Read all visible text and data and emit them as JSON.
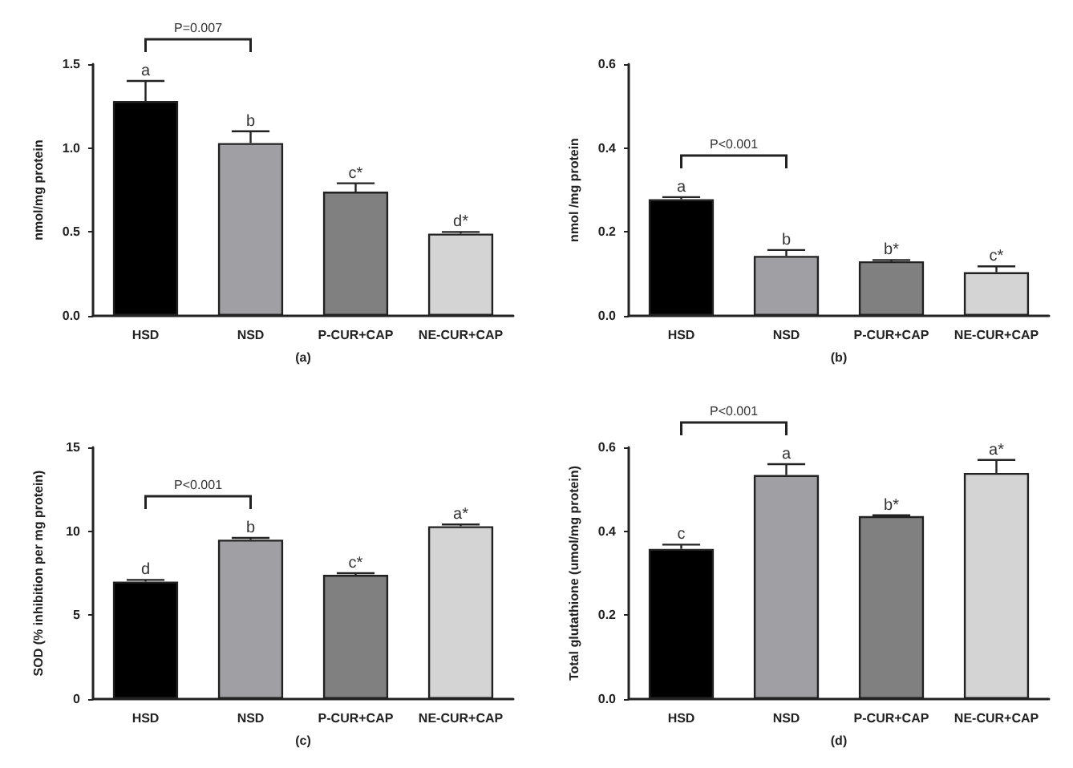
{
  "chart_data": [
    {
      "type": "bar",
      "xlabel": "(a)",
      "ylabel": "nmol/mg protein",
      "categories": [
        "HSD",
        "NSD",
        "P-CUR+CAP",
        "NE-CUR+CAP"
      ],
      "values": [
        1.28,
        1.03,
        0.74,
        0.49
      ],
      "colors": [
        "#000000",
        "#a0a0a4",
        "#808080",
        "#d4d4d4"
      ],
      "errors": [
        [
          1.28,
          1.4
        ],
        [
          1.03,
          1.1
        ],
        [
          0.74,
          0.79
        ],
        [
          0.49,
          0.5
        ]
      ],
      "ylim": [
        0,
        1.5
      ],
      "yticks": [
        {
          "value": 0,
          "label": "0.0"
        },
        {
          "value": 0.5,
          "label": "0.5"
        },
        {
          "value": 1,
          "label": "1.0"
        },
        {
          "value": 1.5,
          "label": "1.5"
        }
      ],
      "grid": false,
      "annotations": [
        {
          "text": "a",
          "x": "HSD",
          "y": 1.4
        },
        {
          "text": "b",
          "x": "NSD",
          "y": 1.1
        },
        {
          "text": "c*",
          "x": "P-CUR+CAP",
          "y": 0.79
        },
        {
          "text": "d*",
          "x": "NE-CUR+CAP",
          "y": 0.5
        },
        "P=0.007"
      ]
    },
    {
      "type": "bar",
      "xlabel": "(b)",
      "ylabel": "nmol /mg protein",
      "categories": [
        "HSD",
        "NSD",
        "P-CUR+CAP",
        "NE-CUR+CAP"
      ],
      "values": [
        0.278,
        0.143,
        0.13,
        0.104
      ],
      "colors": [
        "#000000",
        "#a0a0a4",
        "#808080",
        "#d4d4d4"
      ],
      "errors": [
        [
          0.278,
          0.283
        ],
        [
          0.143,
          0.157
        ],
        [
          0.13,
          0.133
        ],
        [
          0.104,
          0.118
        ]
      ],
      "ylim": [
        0,
        0.6
      ],
      "yticks": [
        {
          "value": 0,
          "label": "0.0"
        },
        {
          "value": 0.2,
          "label": "0.2"
        },
        {
          "value": 0.4,
          "label": "0.4"
        },
        {
          "value": 0.6,
          "label": "0.6"
        }
      ],
      "grid": false,
      "annotations": [
        {
          "text": "a",
          "x": "HSD",
          "y": 0.283
        },
        {
          "text": "b",
          "x": "NSD",
          "y": 0.157
        },
        {
          "text": "b*",
          "x": "P-CUR+CAP",
          "y": 0.133
        },
        {
          "text": "c*",
          "x": "NE-CUR+CAP",
          "y": 0.118
        },
        "P<0.001"
      ]
    },
    {
      "type": "bar",
      "xlabel": "(c)",
      "ylabel": "SOD (% inhibition per mg protein)",
      "categories": [
        "HSD",
        "NSD",
        "P-CUR+CAP",
        "NE-CUR+CAP"
      ],
      "values": [
        7.0,
        9.5,
        7.4,
        10.3
      ],
      "colors": [
        "#000000",
        "#a0a0a4",
        "#808080",
        "#d4d4d4"
      ],
      "errors": [
        [
          7.0,
          7.1
        ],
        [
          9.5,
          9.6
        ],
        [
          7.4,
          7.5
        ],
        [
          10.3,
          10.4
        ]
      ],
      "ylim": [
        0,
        15
      ],
      "yticks": [
        0,
        5,
        10,
        15
      ],
      "grid": false,
      "annotations": [
        {
          "text": "d",
          "x": "HSD",
          "y": 7.1
        },
        {
          "text": "b",
          "x": "NSD",
          "y": 9.6
        },
        {
          "text": "c*",
          "x": "P-CUR+CAP",
          "y": 7.5
        },
        {
          "text": "a*",
          "x": "NE-CUR+CAP",
          "y": 10.4
        },
        "P<0.001"
      ]
    },
    {
      "type": "bar",
      "xlabel": "(d)",
      "ylabel": "Total glutathione (umol/mg protein)",
      "categories": [
        "HSD",
        "NSD",
        "P-CUR+CAP",
        "NE-CUR+CAP"
      ],
      "values": [
        0.358,
        0.534,
        0.436,
        0.539
      ],
      "colors": [
        "#000000",
        "#a0a0a4",
        "#808080",
        "#d4d4d4"
      ],
      "errors": [
        [
          0.358,
          0.368
        ],
        [
          0.534,
          0.56
        ],
        [
          0.436,
          0.438
        ],
        [
          0.539,
          0.57
        ]
      ],
      "ylim": [
        0,
        0.6
      ],
      "yticks": [
        {
          "value": 0,
          "label": "0.0"
        },
        {
          "value": 0.2,
          "label": "0.2"
        },
        {
          "value": 0.4,
          "label": "0.4"
        },
        {
          "value": 0.6,
          "label": "0.6"
        }
      ],
      "grid": false,
      "annotations": [
        {
          "text": "c",
          "x": "HSD",
          "y": 0.368
        },
        {
          "text": "a",
          "x": "NSD",
          "y": 0.56
        },
        {
          "text": "b*",
          "x": "P-CUR+CAP",
          "y": 0.438
        },
        {
          "text": "a*",
          "x": "NE-CUR+CAP",
          "y": 0.57
        },
        "P<0.001"
      ]
    }
  ]
}
